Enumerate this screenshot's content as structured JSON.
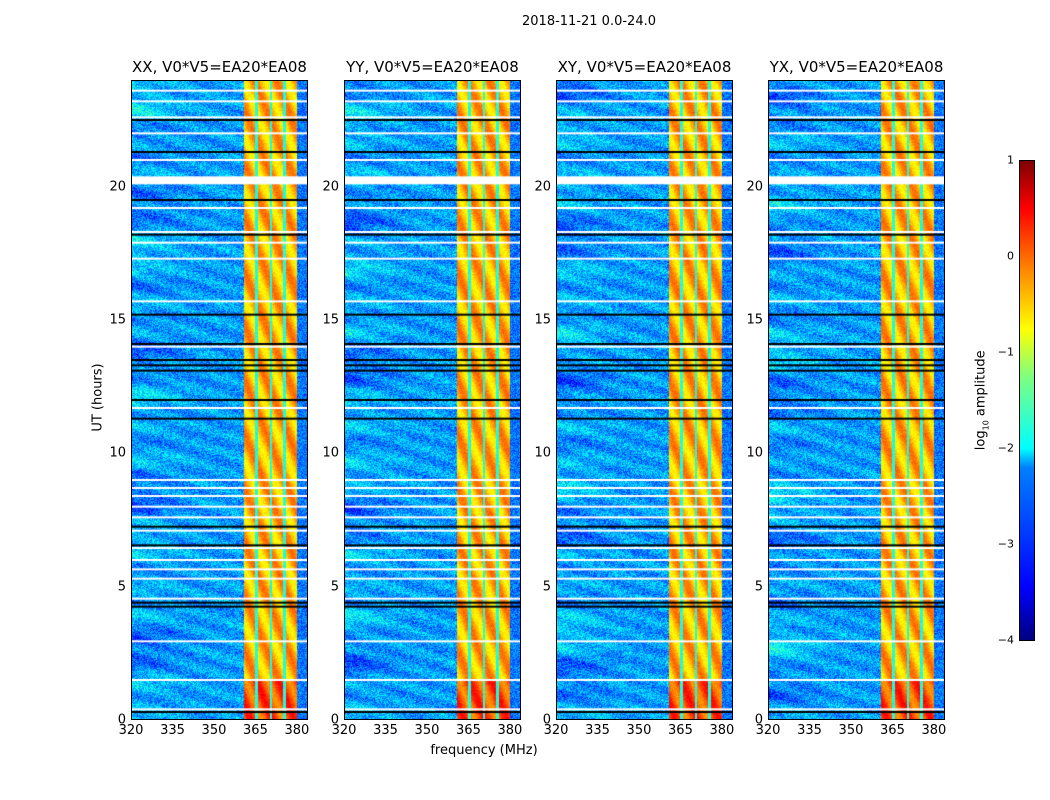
{
  "chart_data": {
    "type": "heatmap",
    "suptitle": "2018-11-21 0.0-24.0",
    "xlabel": "frequency (MHz)",
    "ylabel": "UT (hours)",
    "xlim": [
      320,
      384
    ],
    "ylim": [
      0,
      24
    ],
    "xticks": [
      "320",
      "335",
      "350",
      "365",
      "380"
    ],
    "yticks": [
      "0",
      "5",
      "10",
      "15",
      "20"
    ],
    "panels": [
      {
        "title": "XX, V0*V5=EA20*EA08"
      },
      {
        "title": "YY, V0*V5=EA20*EA08"
      },
      {
        "title": "XY, V0*V5=EA20*EA08"
      },
      {
        "title": "YX, V0*V5=EA20*EA08"
      }
    ],
    "colorbar": {
      "label": "log10 amplitude",
      "label_main": "log",
      "label_sub": "10",
      "label_rest": " amplitude",
      "range": [
        -4,
        1
      ],
      "ticks": [
        "1",
        "0",
        "−1",
        "−2",
        "−3",
        "−4"
      ],
      "colormap": "jet"
    },
    "background_level": -2.6,
    "rfi_band_mhz": [
      360.5,
      380
    ],
    "rfi_level": -0.5,
    "rfi_gaps_mhz": [
      365.2,
      370.5,
      375.3
    ],
    "flagged_white_hours": [
      0.4,
      1.5,
      2.95,
      4.55,
      5.3,
      5.65,
      6.0,
      6.45,
      7.1,
      7.6,
      8.0,
      8.4,
      8.7,
      9.0,
      11.7,
      14.0,
      15.7,
      17.3,
      17.9,
      18.3,
      19.2,
      20.35,
      21.0,
      22.0,
      22.6,
      23.2,
      23.6
    ],
    "flagged_black_hours": [
      0.3,
      4.25,
      4.4,
      6.55,
      7.25,
      11.3,
      12.0,
      13.1,
      13.3,
      13.5,
      14.1,
      15.2,
      18.2,
      19.5,
      21.3,
      22.5
    ]
  }
}
